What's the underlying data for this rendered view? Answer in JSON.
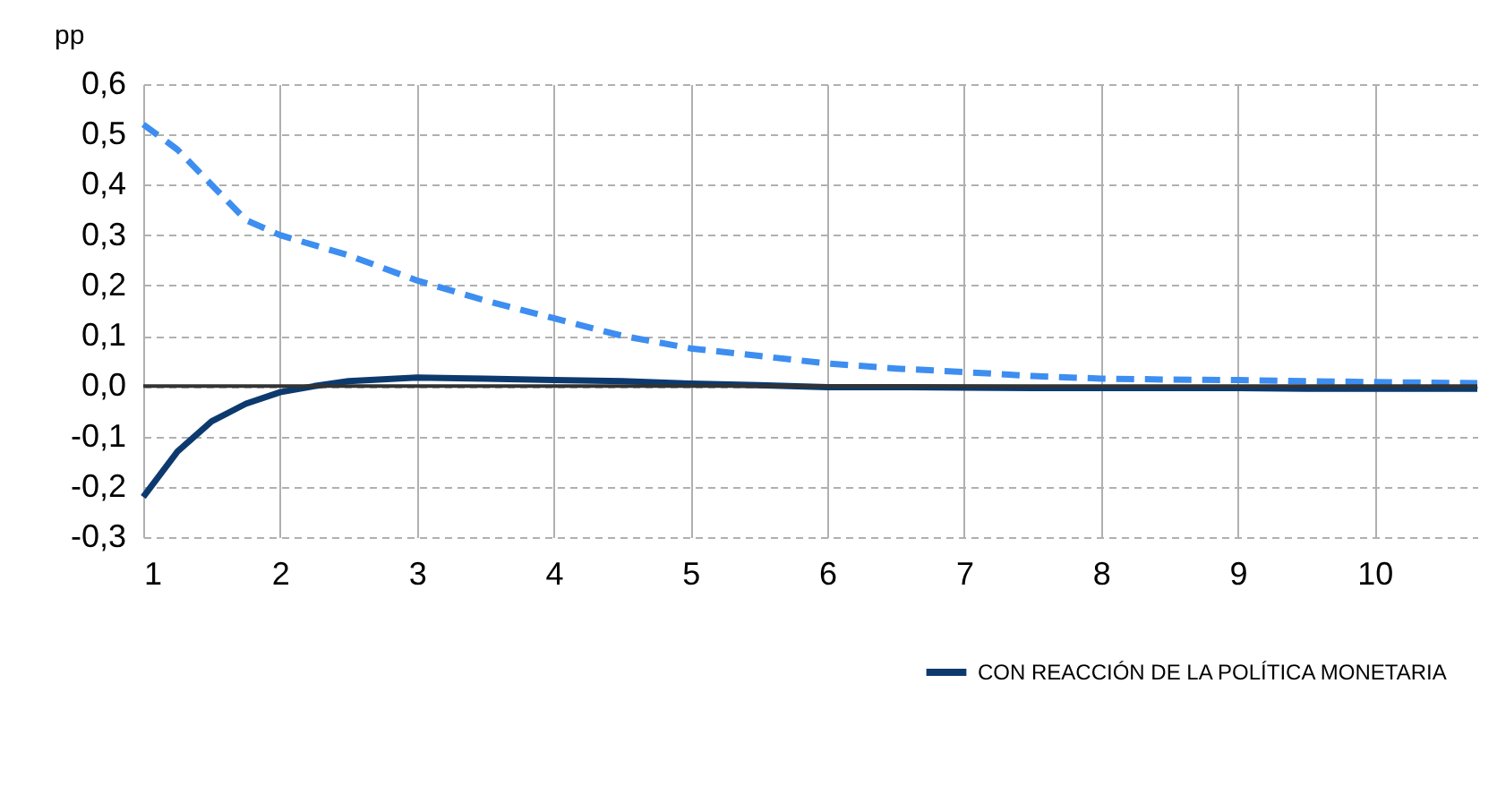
{
  "chart_data": {
    "type": "line",
    "ylabel": "pp",
    "x": [
      1,
      1.25,
      1.5,
      1.75,
      2,
      2.25,
      2.5,
      3,
      3.5,
      4,
      4.5,
      5,
      5.5,
      6,
      6.5,
      7,
      7.5,
      8,
      8.5,
      9,
      9.5,
      10,
      10.75
    ],
    "series": [
      {
        "name": null,
        "color": "#3d8ef0",
        "line_style": "dashed",
        "values": [
          0.52,
          0.47,
          0.4,
          0.33,
          0.3,
          0.28,
          0.26,
          0.21,
          0.17,
          0.135,
          0.1,
          0.075,
          0.06,
          0.045,
          0.035,
          0.028,
          0.02,
          0.015,
          0.013,
          0.012,
          0.01,
          0.008,
          0.006
        ]
      },
      {
        "name": "CON REACCIÓN DE LA POLÍTICA MONETARIA",
        "color": "#0d3a6e",
        "line_style": "solid",
        "values": [
          -0.22,
          -0.13,
          -0.07,
          -0.035,
          -0.012,
          0.0,
          0.01,
          0.017,
          0.015,
          0.012,
          0.01,
          0.005,
          0.002,
          -0.002,
          -0.002,
          -0.003,
          -0.004,
          -0.004,
          -0.004,
          -0.004,
          -0.005,
          -0.005,
          -0.005
        ]
      }
    ],
    "xlim": [
      1,
      10.75
    ],
    "xticks": [
      1,
      2,
      3,
      4,
      5,
      6,
      7,
      8,
      9,
      10
    ],
    "ylim": [
      -0.3,
      0.6
    ],
    "yticks": [
      {
        "value": -0.3,
        "label": "-0,3"
      },
      {
        "value": -0.2,
        "label": "-0,2"
      },
      {
        "value": -0.1,
        "label": "-0,1"
      },
      {
        "value": 0,
        "label": "0,0"
      },
      {
        "value": 0.1,
        "label": "0,1"
      },
      {
        "value": 0.2,
        "label": "0,2"
      },
      {
        "value": 0.3,
        "label": "0,3"
      },
      {
        "value": 0.4,
        "label": "0,4"
      },
      {
        "value": 0.5,
        "label": "0,5"
      },
      {
        "value": 0.6,
        "label": "0,6"
      }
    ],
    "ref_lines": [
      {
        "axis": "y",
        "value": 0,
        "color": "#333333"
      }
    ],
    "grid": true,
    "legend": "bottom right"
  }
}
